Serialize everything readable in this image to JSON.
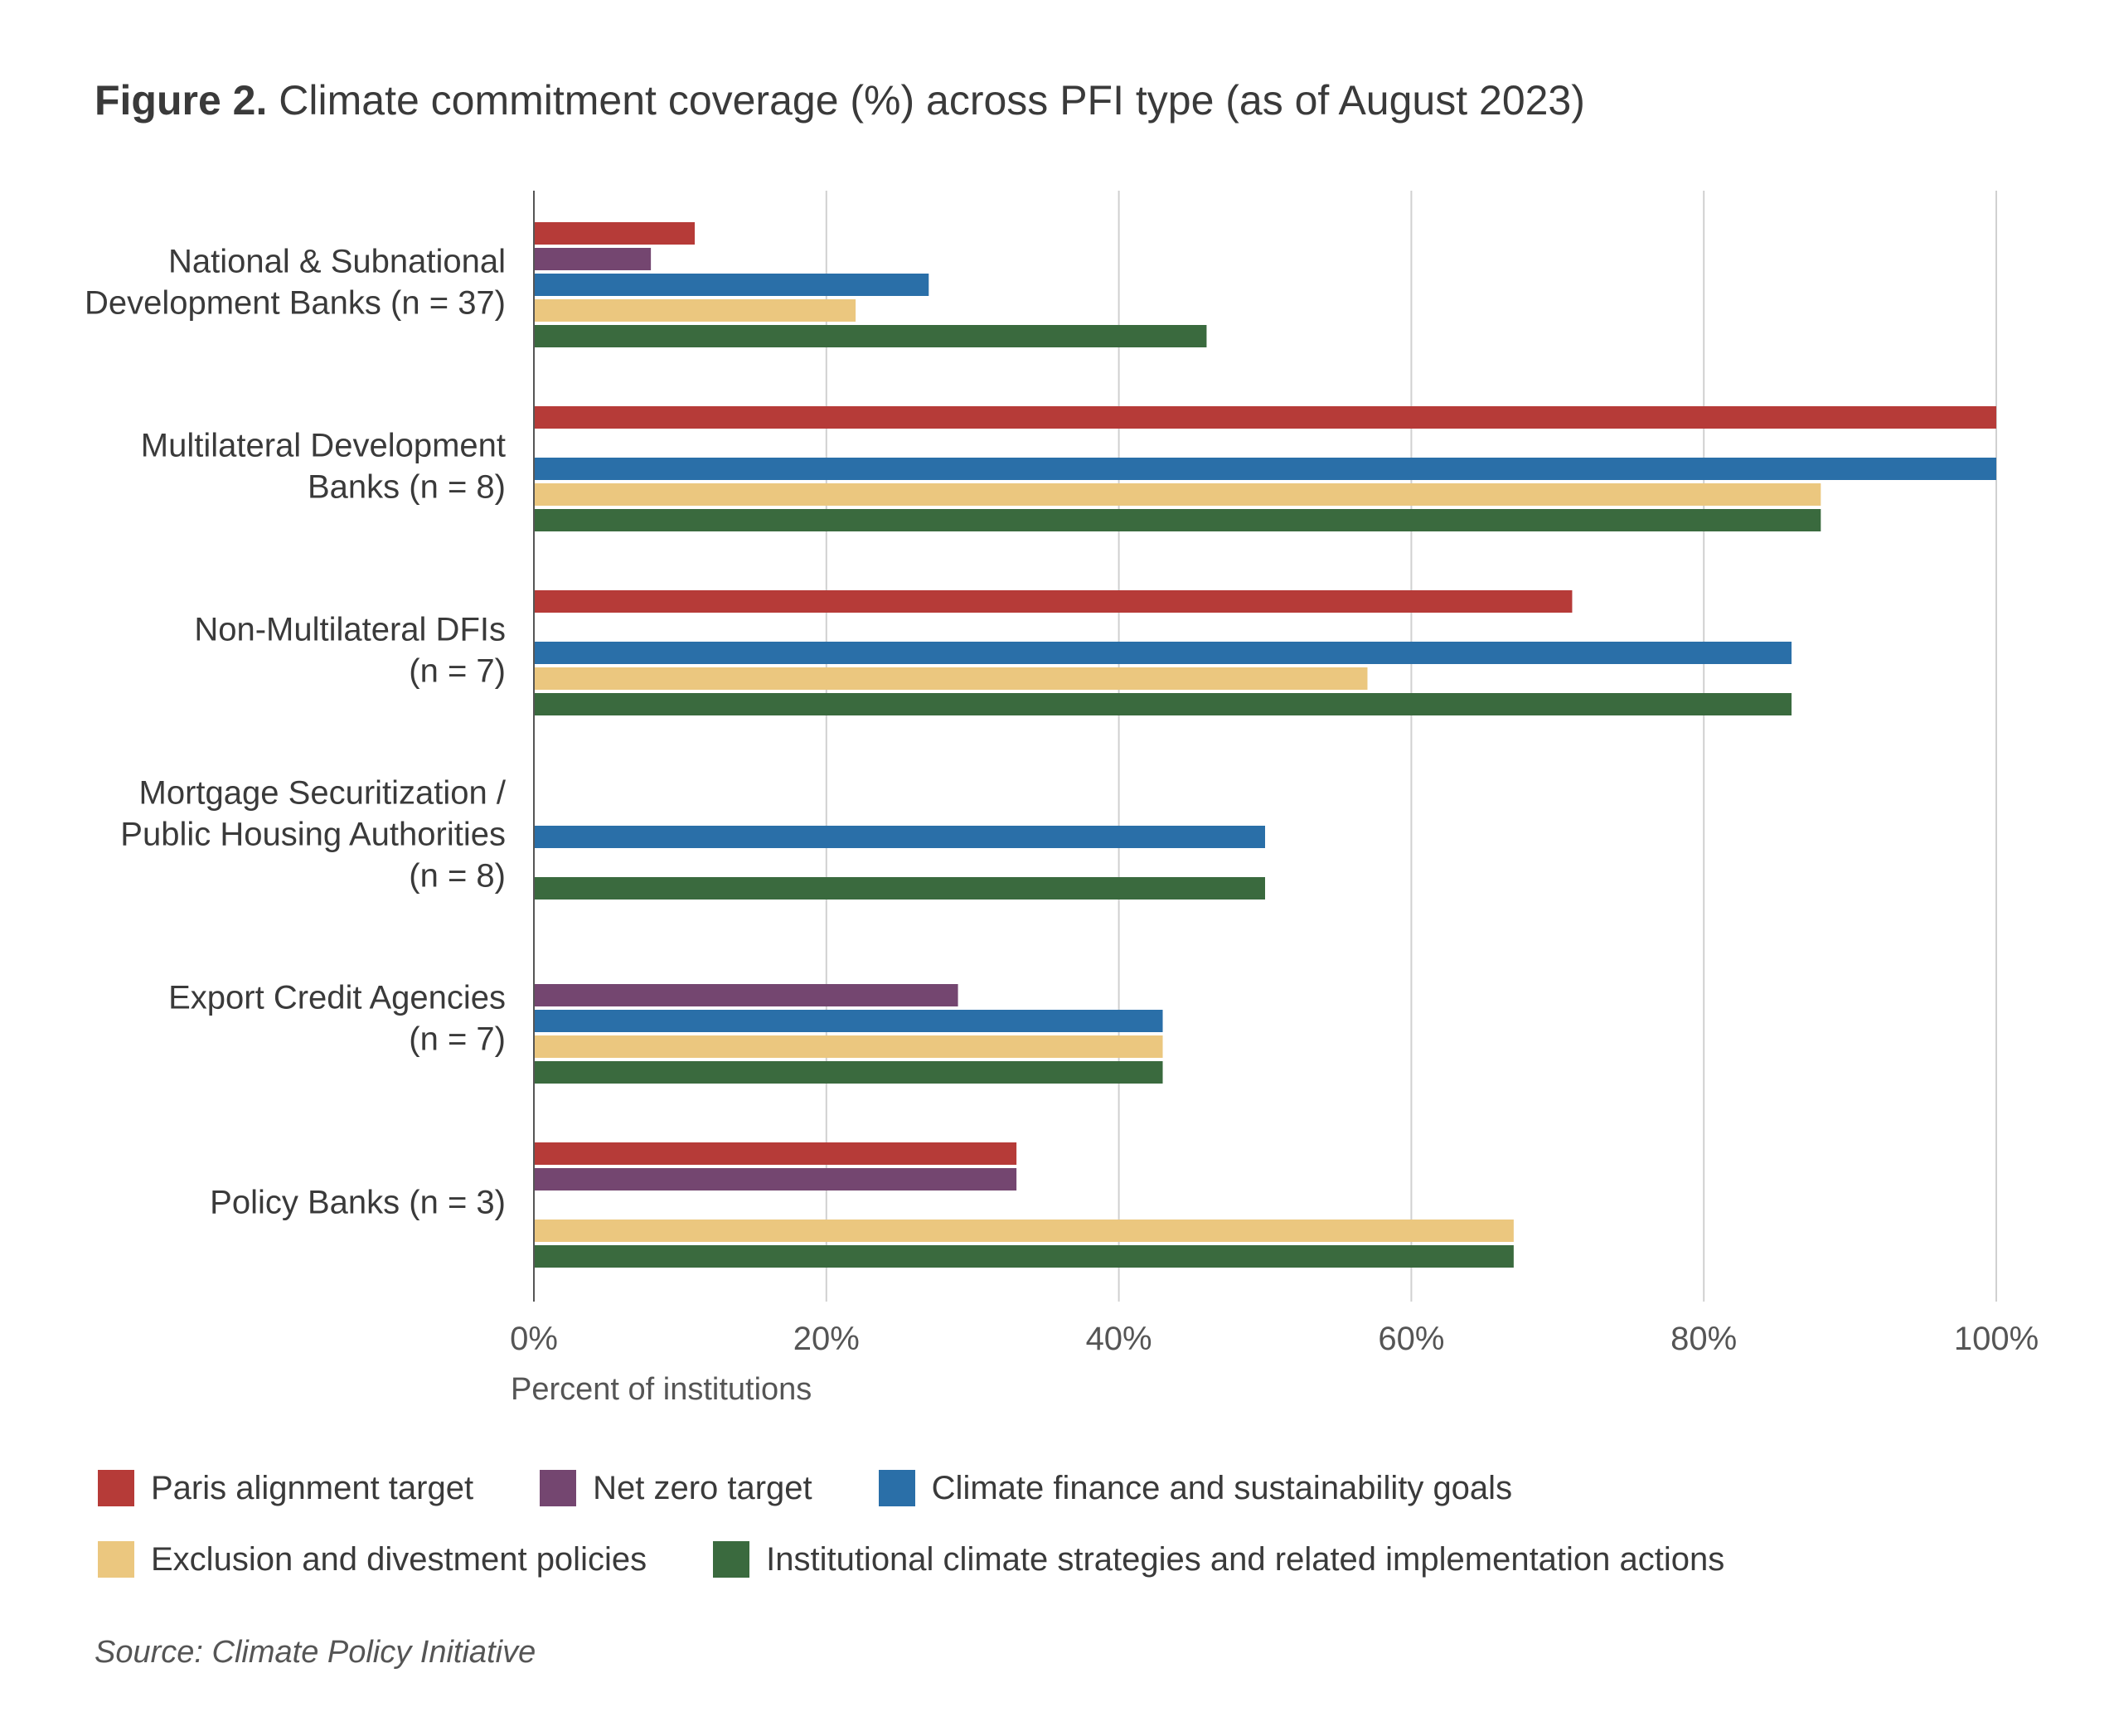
{
  "title": {
    "lead": "Figure 2.",
    "text": "Climate commitment coverage (%) across PFI type (as of August 2023)"
  },
  "source": "Source: Climate Policy Initiative",
  "chart_data": {
    "type": "bar",
    "orientation": "horizontal",
    "xlabel": "Percent of institutions",
    "xlim": [
      0,
      100
    ],
    "x_ticks": [
      0,
      20,
      40,
      60,
      80,
      100
    ],
    "x_tick_labels": [
      "0%",
      "20%",
      "40%",
      "60%",
      "80%",
      "100%"
    ],
    "grid": true,
    "legend_position": "bottom",
    "categories": [
      [
        "National & Subnational",
        "Development Banks (n = 37)"
      ],
      [
        "Multilateral Development",
        "Banks (n = 8)"
      ],
      [
        "Non-Multilateral DFIs",
        "(n = 7)"
      ],
      [
        "Mortgage Securitization /",
        "Public Housing Authorities",
        "(n = 8)"
      ],
      [
        "Export Credit Agencies",
        "(n = 7)"
      ],
      [
        "Policy Banks (n = 3)"
      ]
    ],
    "series": [
      {
        "name": "Paris alignment target",
        "color": "#b63b38",
        "values": [
          11,
          100,
          71,
          0,
          0,
          33
        ]
      },
      {
        "name": "Net zero target",
        "color": "#744670",
        "values": [
          8,
          0,
          0,
          0,
          29,
          33
        ]
      },
      {
        "name": "Climate finance and sustainability goals",
        "color": "#2a6fa8",
        "values": [
          27,
          100,
          86,
          50,
          43,
          0
        ]
      },
      {
        "name": "Exclusion and divestment policies",
        "color": "#ebc77f",
        "values": [
          22,
          88,
          57,
          0,
          43,
          67
        ]
      },
      {
        "name": "Institutional climate strategies and related implementation actions",
        "color": "#3a6a3e",
        "values": [
          46,
          88,
          86,
          50,
          43,
          67
        ]
      }
    ],
    "legend_rows": [
      [
        0,
        1,
        2
      ],
      [
        3,
        4
      ]
    ]
  }
}
